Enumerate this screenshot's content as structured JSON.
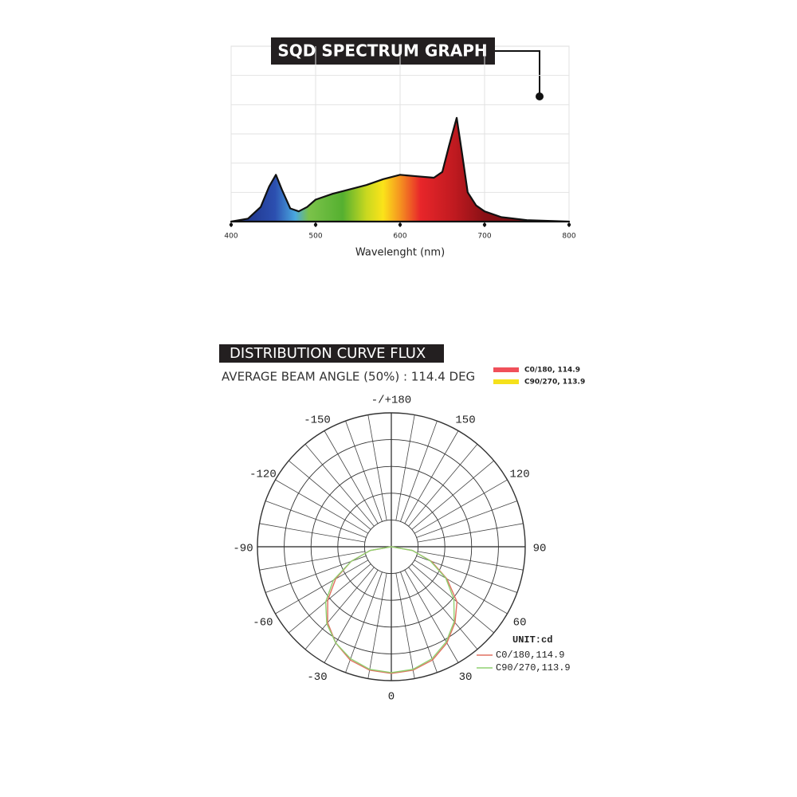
{
  "chart_data": [
    {
      "type": "area",
      "title": "SQD SPECTRUM GRAPH",
      "xlabel": "Wavelenght (nm)",
      "x": [
        400,
        420,
        435,
        445,
        453,
        460,
        470,
        480,
        490,
        500,
        520,
        540,
        560,
        580,
        600,
        620,
        640,
        650,
        658,
        667,
        673,
        680,
        690,
        700,
        720,
        750,
        800
      ],
      "values": [
        0,
        0.1,
        0.5,
        1.2,
        1.6,
        1.1,
        0.45,
        0.35,
        0.5,
        0.75,
        0.95,
        1.1,
        1.25,
        1.45,
        1.6,
        1.55,
        1.5,
        1.7,
        2.6,
        3.55,
        2.4,
        1.0,
        0.55,
        0.35,
        0.15,
        0.05,
        0
      ],
      "xlim": [
        400,
        800
      ],
      "xticks": [
        400,
        500,
        600,
        700,
        800
      ],
      "ylim": [
        0,
        6
      ],
      "ygrid": [
        1,
        2,
        3,
        4,
        5
      ],
      "grid": true
    },
    {
      "type": "polar",
      "title": "DISTRIBUTION CURVE FLUX",
      "subtitle": "AVERAGE BEAM ANGLE  (50%) : 114.4 DEG",
      "header_legend": [
        {
          "label": "C0/180, 114.9",
          "color": "#f0505a"
        },
        {
          "label": "C90/270, 113.9",
          "color": "#f5e11c"
        }
      ],
      "theta": [
        -90,
        -80,
        -70,
        -60,
        -50,
        -40,
        -30,
        -20,
        -10,
        0,
        10,
        20,
        30,
        40,
        50,
        60,
        70,
        80,
        90
      ],
      "series": [
        {
          "name": "C0/180,114.9",
          "color": "#e07060",
          "values": [
            0,
            0.8,
            1.6,
            2.4,
            3.1,
            3.7,
            4.15,
            4.5,
            4.68,
            4.73,
            4.68,
            4.5,
            4.15,
            3.7,
            3.2,
            2.4,
            1.6,
            0.8,
            0
          ]
        },
        {
          "name": "C90/270,113.9",
          "color": "#8fd070",
          "values": [
            0,
            0.8,
            1.6,
            2.5,
            3.2,
            3.75,
            4.15,
            4.45,
            4.65,
            4.7,
            4.65,
            4.45,
            4.1,
            3.65,
            3.05,
            2.35,
            1.55,
            0.8,
            0
          ]
        }
      ],
      "legend_title": "UNIT:cd",
      "rlim": [
        0,
        5
      ],
      "rgrid": [
        1,
        2,
        3,
        4,
        5
      ],
      "thetaticks": [
        {
          "value": 180,
          "label": "-/+180"
        },
        -150,
        150,
        -120,
        120,
        -90,
        90,
        -60,
        60,
        -30,
        30,
        0
      ]
    }
  ]
}
